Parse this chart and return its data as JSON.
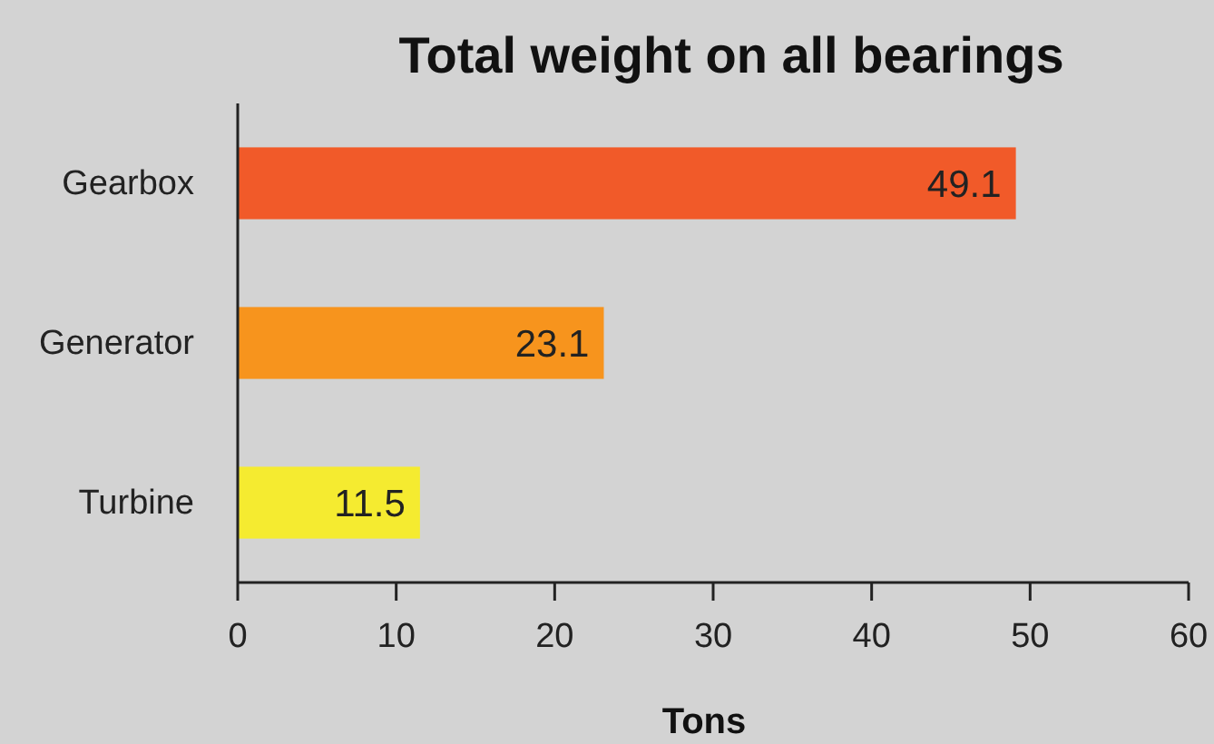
{
  "chart_data": {
    "type": "bar",
    "orientation": "horizontal",
    "title": "Total weight on all bearings",
    "xlabel": "Tons",
    "categories": [
      "Gearbox",
      "Generator",
      "Turbine"
    ],
    "values": [
      49.1,
      23.1,
      11.5
    ],
    "colors": [
      "#f15a29",
      "#f7941d",
      "#f5eb30"
    ],
    "xlim": [
      0,
      60
    ],
    "xticks": [
      0,
      10,
      20,
      30,
      40,
      50,
      60
    ],
    "data_labels": true,
    "grid": false
  }
}
